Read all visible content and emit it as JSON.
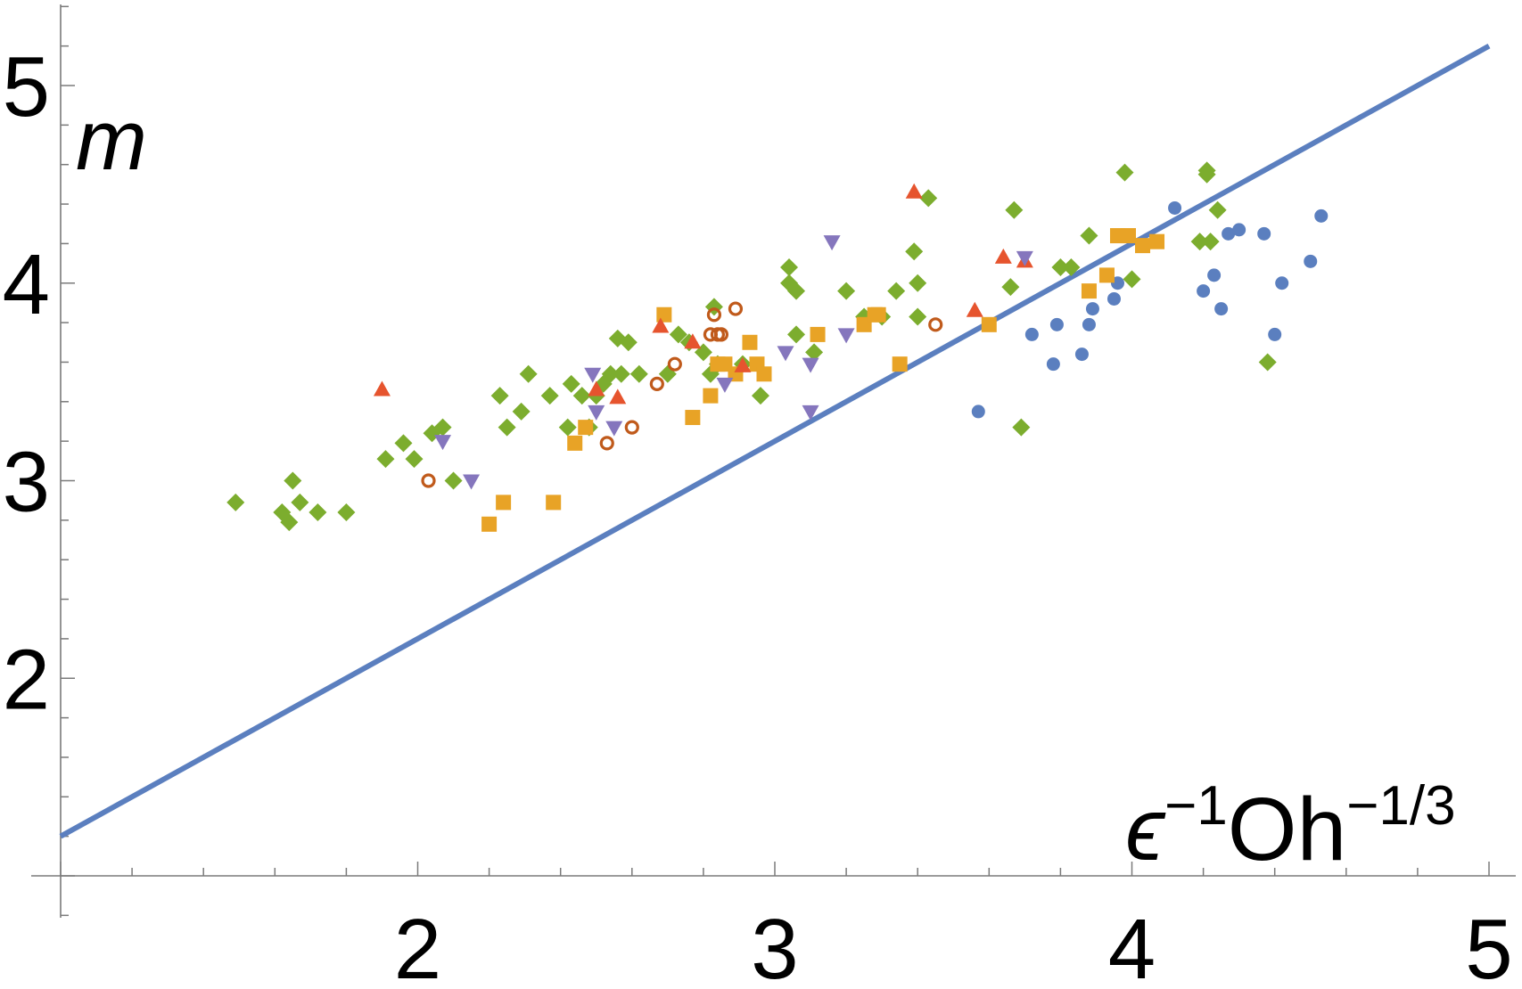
{
  "chart_data": {
    "type": "scatter",
    "title": "",
    "xlabel": {
      "base": "ϵ",
      "base_sup": "−1",
      "tail": "Oh",
      "tail_sup": "−1/3"
    },
    "ylabel": "m",
    "xlim": [
      1.0,
      5.1
    ],
    "ylim": [
      1.0,
      5.4
    ],
    "x_ticks": [
      2,
      3,
      4,
      5
    ],
    "y_ticks": [
      2,
      3,
      4,
      5
    ],
    "x_tick_labels": [
      "2",
      "3",
      "4",
      "5"
    ],
    "y_tick_labels": [
      "2",
      "3",
      "4",
      "5"
    ],
    "x_minor_step": 0.2,
    "y_minor_step": 0.2,
    "x_origin": 1.0,
    "y_origin": 1.0,
    "grid": false,
    "legend": "none",
    "line": {
      "x": [
        1.0,
        5.0
      ],
      "y": [
        1.2,
        5.2
      ],
      "color": "#5b7fbf"
    },
    "series": [
      {
        "marker": "circle",
        "color": "#5b7fbf",
        "points": [
          [
            3.57,
            3.35
          ],
          [
            3.72,
            3.74
          ],
          [
            3.78,
            3.59
          ],
          [
            3.79,
            3.79
          ],
          [
            3.86,
            3.64
          ],
          [
            3.88,
            3.79
          ],
          [
            3.89,
            3.87
          ],
          [
            3.95,
            3.92
          ],
          [
            3.96,
            4.0
          ],
          [
            4.12,
            4.38
          ],
          [
            4.2,
            3.96
          ],
          [
            4.23,
            4.04
          ],
          [
            4.25,
            3.87
          ],
          [
            4.27,
            4.25
          ],
          [
            4.3,
            4.27
          ],
          [
            4.37,
            4.25
          ],
          [
            4.4,
            3.74
          ],
          [
            4.42,
            4.0
          ],
          [
            4.5,
            4.11
          ],
          [
            4.53,
            4.34
          ]
        ]
      },
      {
        "marker": "diamond",
        "color": "#7cad2e",
        "points": [
          [
            1.49,
            2.89
          ],
          [
            1.62,
            2.84
          ],
          [
            1.64,
            2.79
          ],
          [
            1.65,
            3.0
          ],
          [
            1.67,
            2.89
          ],
          [
            1.72,
            2.84
          ],
          [
            1.8,
            2.84
          ],
          [
            1.91,
            3.11
          ],
          [
            1.96,
            3.19
          ],
          [
            1.99,
            3.11
          ],
          [
            2.04,
            3.24
          ],
          [
            2.07,
            3.27
          ],
          [
            2.1,
            3.0
          ],
          [
            2.23,
            3.43
          ],
          [
            2.25,
            3.27
          ],
          [
            2.29,
            3.35
          ],
          [
            2.31,
            3.54
          ],
          [
            2.37,
            3.43
          ],
          [
            2.42,
            3.27
          ],
          [
            2.43,
            3.49
          ],
          [
            2.46,
            3.43
          ],
          [
            2.48,
            3.27
          ],
          [
            2.5,
            3.43
          ],
          [
            2.52,
            3.49
          ],
          [
            2.54,
            3.54
          ],
          [
            2.56,
            3.72
          ],
          [
            2.57,
            3.54
          ],
          [
            2.59,
            3.7
          ],
          [
            2.62,
            3.54
          ],
          [
            2.7,
            3.54
          ],
          [
            2.73,
            3.74
          ],
          [
            2.76,
            3.7
          ],
          [
            2.8,
            3.65
          ],
          [
            2.82,
            3.54
          ],
          [
            2.83,
            3.88
          ],
          [
            2.84,
            3.59
          ],
          [
            2.91,
            3.59
          ],
          [
            2.96,
            3.43
          ],
          [
            3.04,
            4.08
          ],
          [
            3.04,
            4.0
          ],
          [
            3.06,
            3.96
          ],
          [
            3.06,
            3.74
          ],
          [
            3.11,
            3.65
          ],
          [
            3.2,
            3.96
          ],
          [
            3.25,
            3.83
          ],
          [
            3.3,
            3.83
          ],
          [
            3.34,
            3.96
          ],
          [
            3.39,
            4.16
          ],
          [
            3.4,
            4.0
          ],
          [
            3.4,
            3.83
          ],
          [
            3.43,
            4.43
          ],
          [
            3.66,
            3.98
          ],
          [
            3.67,
            4.37
          ],
          [
            3.69,
            3.27
          ],
          [
            3.8,
            4.08
          ],
          [
            3.83,
            4.08
          ],
          [
            3.88,
            4.24
          ],
          [
            4.0,
            4.02
          ],
          [
            3.98,
            4.56
          ],
          [
            4.19,
            4.21
          ],
          [
            4.21,
            4.57
          ],
          [
            4.21,
            4.55
          ],
          [
            4.22,
            4.21
          ],
          [
            4.24,
            4.37
          ],
          [
            4.38,
            3.6
          ]
        ]
      },
      {
        "marker": "square",
        "color": "#e8a326",
        "points": [
          [
            2.2,
            2.78
          ],
          [
            2.24,
            2.89
          ],
          [
            2.38,
            2.89
          ],
          [
            2.44,
            3.19
          ],
          [
            2.47,
            3.27
          ],
          [
            2.69,
            3.84
          ],
          [
            2.77,
            3.32
          ],
          [
            2.82,
            3.43
          ],
          [
            2.84,
            3.59
          ],
          [
            2.86,
            3.59
          ],
          [
            2.89,
            3.54
          ],
          [
            2.93,
            3.7
          ],
          [
            2.95,
            3.59
          ],
          [
            2.97,
            3.54
          ],
          [
            3.12,
            3.74
          ],
          [
            3.25,
            3.79
          ],
          [
            3.28,
            3.84
          ],
          [
            3.29,
            3.84
          ],
          [
            3.35,
            3.59
          ],
          [
            3.6,
            3.79
          ],
          [
            3.88,
            3.96
          ],
          [
            3.93,
            4.04
          ],
          [
            3.96,
            4.24
          ],
          [
            3.99,
            4.24
          ],
          [
            4.03,
            4.19
          ],
          [
            4.07,
            4.21
          ]
        ]
      },
      {
        "marker": "triangle-up",
        "color": "#e6542e",
        "points": [
          [
            1.9,
            3.46
          ],
          [
            2.5,
            3.46
          ],
          [
            2.56,
            3.42
          ],
          [
            2.68,
            3.78
          ],
          [
            2.77,
            3.7
          ],
          [
            2.91,
            3.58
          ],
          [
            3.39,
            4.46
          ],
          [
            3.56,
            3.86
          ],
          [
            3.64,
            4.13
          ],
          [
            3.7,
            4.11
          ]
        ]
      },
      {
        "marker": "triangle-down",
        "color": "#8576bd",
        "points": [
          [
            2.07,
            3.2
          ],
          [
            2.15,
            3.0
          ],
          [
            2.49,
            3.54
          ],
          [
            2.5,
            3.35
          ],
          [
            2.55,
            3.27
          ],
          [
            2.86,
            3.49
          ],
          [
            3.03,
            3.65
          ],
          [
            3.1,
            3.59
          ],
          [
            3.1,
            3.35
          ],
          [
            3.16,
            4.21
          ],
          [
            3.2,
            3.74
          ],
          [
            3.7,
            4.13
          ]
        ]
      },
      {
        "marker": "open-circle",
        "color": "#c05a1b",
        "points": [
          [
            2.03,
            3.0
          ],
          [
            2.53,
            3.19
          ],
          [
            2.6,
            3.27
          ],
          [
            2.67,
            3.49
          ],
          [
            2.72,
            3.59
          ],
          [
            2.82,
            3.74
          ],
          [
            2.83,
            3.84
          ],
          [
            2.84,
            3.74
          ],
          [
            2.85,
            3.74
          ],
          [
            2.89,
            3.87
          ],
          [
            3.45,
            3.79
          ]
        ]
      }
    ]
  }
}
